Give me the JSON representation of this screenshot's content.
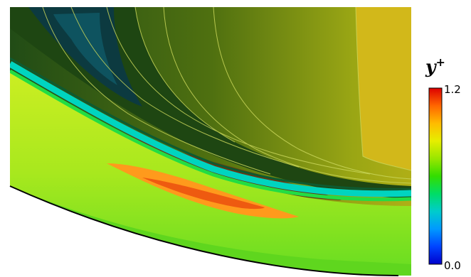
{
  "chart_data": {
    "type": "heatmap",
    "variable_label": "y",
    "variable_superscript": "+",
    "colorbar": {
      "min_label": "0.0",
      "max_label": "1.2",
      "range": [
        0.0,
        1.2
      ],
      "stops": [
        "#0000cc",
        "#0044ff",
        "#0099ff",
        "#00cccc",
        "#00dd66",
        "#33dd00",
        "#99e600",
        "#e6ee00",
        "#ffbb00",
        "#ff6600",
        "#dd0000"
      ]
    },
    "field_colors": {
      "low_core": "#0a3a44",
      "dark_wake": "#1f4a16",
      "dark_green": "#2d5a10",
      "mid_olive": "#6f8a10",
      "upper_yellow": "#c6b818",
      "bright_green": "#66dd22",
      "yellow_green": "#ccee22",
      "peak_orange": "#ff8a1a",
      "peak_red": "#e23c10"
    }
  }
}
